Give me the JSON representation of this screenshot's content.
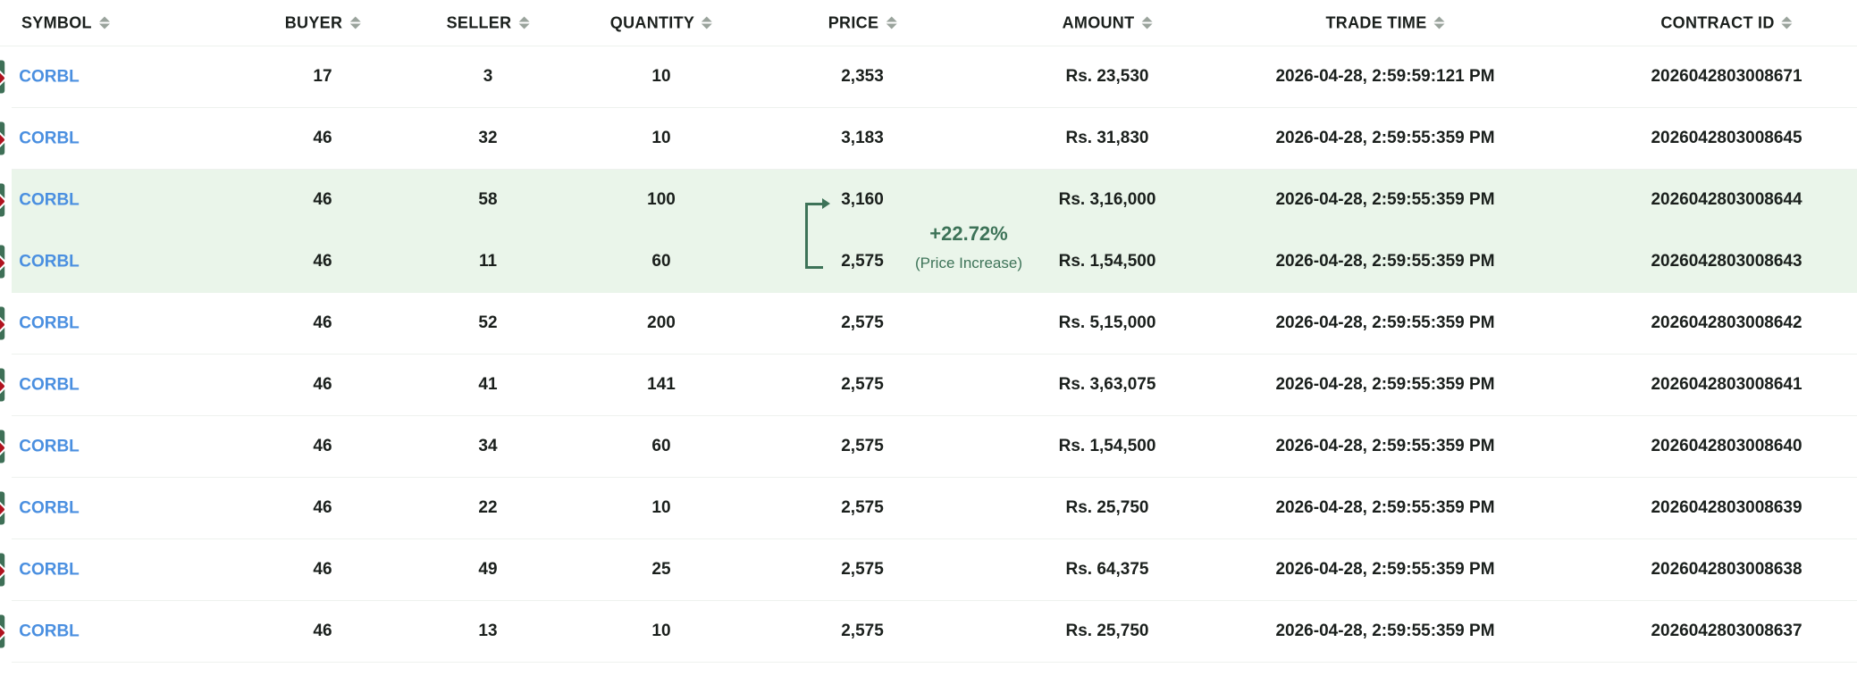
{
  "headers": [
    "SYMBOL",
    "BUYER",
    "SELLER",
    "QUANTITY",
    "PRICE",
    "AMOUNT",
    "TRADE TIME",
    "CONTRACT ID"
  ],
  "rows": [
    {
      "symbol": "CORBL",
      "buyer": "17",
      "seller": "3",
      "quantity": "10",
      "price": "2,353",
      "amount": "Rs. 23,530",
      "time": "2026-04-28, 2:59:59:121 PM",
      "contract": "2026042803008671"
    },
    {
      "symbol": "CORBL",
      "buyer": "46",
      "seller": "32",
      "quantity": "10",
      "price": "3,183",
      "amount": "Rs. 31,830",
      "time": "2026-04-28, 2:59:55:359 PM",
      "contract": "2026042803008645"
    },
    {
      "symbol": "CORBL",
      "buyer": "46",
      "seller": "58",
      "quantity": "100",
      "price": "3,160",
      "amount": "Rs. 3,16,000",
      "time": "2026-04-28, 2:59:55:359 PM",
      "contract": "2026042803008644"
    },
    {
      "symbol": "CORBL",
      "buyer": "46",
      "seller": "11",
      "quantity": "60",
      "price": "2,575",
      "amount": "Rs. 1,54,500",
      "time": "2026-04-28, 2:59:55:359 PM",
      "contract": "2026042803008643"
    },
    {
      "symbol": "CORBL",
      "buyer": "46",
      "seller": "52",
      "quantity": "200",
      "price": "2,575",
      "amount": "Rs. 5,15,000",
      "time": "2026-04-28, 2:59:55:359 PM",
      "contract": "2026042803008642"
    },
    {
      "symbol": "CORBL",
      "buyer": "46",
      "seller": "41",
      "quantity": "141",
      "price": "2,575",
      "amount": "Rs. 3,63,075",
      "time": "2026-04-28, 2:59:55:359 PM",
      "contract": "2026042803008641"
    },
    {
      "symbol": "CORBL",
      "buyer": "46",
      "seller": "34",
      "quantity": "60",
      "price": "2,575",
      "amount": "Rs. 1,54,500",
      "time": "2026-04-28, 2:59:55:359 PM",
      "contract": "2026042803008640"
    },
    {
      "symbol": "CORBL",
      "buyer": "46",
      "seller": "22",
      "quantity": "10",
      "price": "2,575",
      "amount": "Rs. 25,750",
      "time": "2026-04-28, 2:59:55:359 PM",
      "contract": "2026042803008639"
    },
    {
      "symbol": "CORBL",
      "buyer": "46",
      "seller": "49",
      "quantity": "25",
      "price": "2,575",
      "amount": "Rs. 64,375",
      "time": "2026-04-28, 2:59:55:359 PM",
      "contract": "2026042803008638"
    },
    {
      "symbol": "CORBL",
      "buyer": "46",
      "seller": "13",
      "quantity": "10",
      "price": "2,575",
      "amount": "Rs. 25,750",
      "time": "2026-04-28, 2:59:55:359 PM",
      "contract": "2026042803008637"
    }
  ],
  "annotation": {
    "change": "+22.72%",
    "label": "(Price Increase)",
    "highlighted_rows": [
      2,
      3
    ]
  },
  "colors": {
    "highlight": "#eaf5ea",
    "accent": "#3d7358",
    "link": "#4a8fe0",
    "logo_bg": "#3e7057",
    "logo_diamond": "#b0121e"
  }
}
